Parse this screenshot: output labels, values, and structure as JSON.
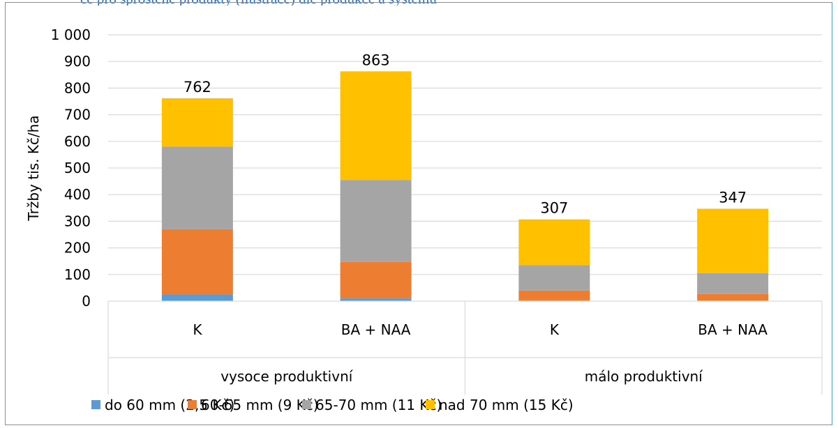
{
  "caption": "ce pro sprostěné produkty (ilustrace) dle produkce a systému",
  "chart_data": {
    "type": "bar",
    "stacked": true,
    "ylabel": "Tržby tis. Kč/ha",
    "ylim": [
      0,
      1000
    ],
    "yticks": [
      "0",
      "100",
      "200",
      "300",
      "400",
      "500",
      "600",
      "700",
      "800",
      "900",
      "1 000"
    ],
    "ytick_values": [
      0,
      100,
      200,
      300,
      400,
      500,
      600,
      700,
      800,
      900,
      1000
    ],
    "groups": [
      {
        "label": "vysoce produktivní",
        "categories": [
          "K",
          "BA + NAA"
        ]
      },
      {
        "label": "málo produktivní",
        "categories": [
          "K",
          "BA + NAA"
        ]
      }
    ],
    "categories": [
      "K",
      "BA + NAA",
      "K",
      "BA + NAA"
    ],
    "series": [
      {
        "name": "do 60 mm (2,5 Kč)",
        "color": "#5b9bd5",
        "values": [
          25,
          10,
          3,
          2
        ]
      },
      {
        "name": "60-65 mm (9 Kč)",
        "color": "#ed7d31",
        "values": [
          245,
          137,
          37,
          25
        ]
      },
      {
        "name": "65-70 mm (11 Kč)",
        "color": "#a5a5a5",
        "values": [
          310,
          308,
          95,
          78
        ]
      },
      {
        "name": "nad 70 mm (15 Kč)",
        "color": "#ffc000",
        "values": [
          182,
          408,
          172,
          242
        ]
      }
    ],
    "totals": [
      "762",
      "863",
      "307",
      "347"
    ],
    "legend_position": "bottom",
    "grid": true
  }
}
